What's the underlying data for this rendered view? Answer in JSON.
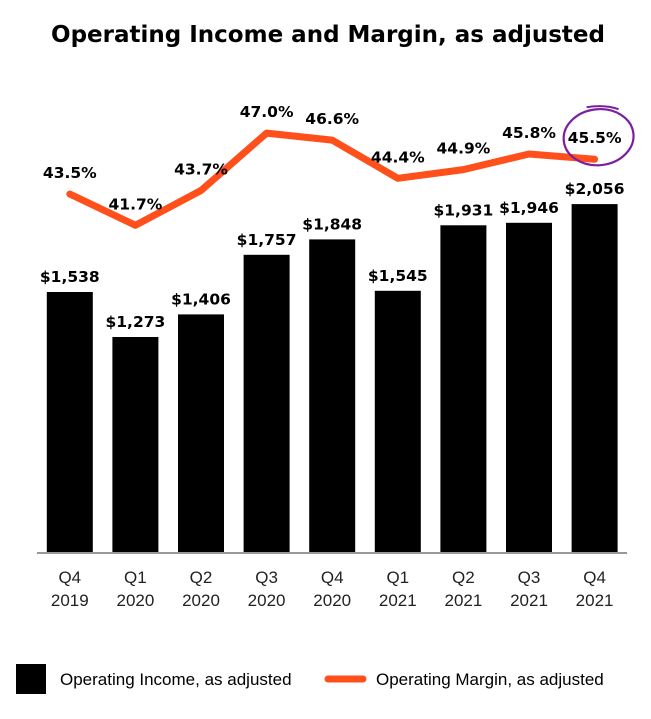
{
  "chart_data": {
    "type": "bar",
    "title": "Operating Income and Margin, as adjusted",
    "categories": [
      {
        "line1": "Q4",
        "line2": "2019"
      },
      {
        "line1": "Q1",
        "line2": "2020"
      },
      {
        "line1": "Q2",
        "line2": "2020"
      },
      {
        "line1": "Q3",
        "line2": "2020"
      },
      {
        "line1": "Q4",
        "line2": "2020"
      },
      {
        "line1": "Q1",
        "line2": "2021"
      },
      {
        "line1": "Q2",
        "line2": "2021"
      },
      {
        "line1": "Q3",
        "line2": "2021"
      },
      {
        "line1": "Q4",
        "line2": "2021"
      }
    ],
    "series": [
      {
        "name": "Operating Income, as adjusted",
        "kind": "bar",
        "color": "#000000",
        "values": [
          1538,
          1273,
          1406,
          1757,
          1848,
          1545,
          1931,
          1946,
          2056
        ],
        "labels": [
          "$1,538",
          "$1,273",
          "$1,406",
          "$1,757",
          "$1,848",
          "$1,545",
          "$1,931",
          "$1,946",
          "$2,056"
        ]
      },
      {
        "name": "Operating Margin, as adjusted",
        "kind": "line",
        "color": "#FF4F1A",
        "values": [
          43.5,
          41.7,
          43.7,
          47.0,
          46.6,
          44.4,
          44.9,
          45.8,
          45.5
        ],
        "labels": [
          "43.5%",
          "41.7%",
          "43.7%",
          "47.0%",
          "46.6%",
          "44.4%",
          "44.9%",
          "45.8%",
          "45.5%"
        ]
      }
    ],
    "annotation": {
      "type": "hand-drawn circle",
      "color": "#7B1FA2",
      "target_label": "45.5%"
    },
    "legend_placement": "bottom",
    "grid": false
  }
}
